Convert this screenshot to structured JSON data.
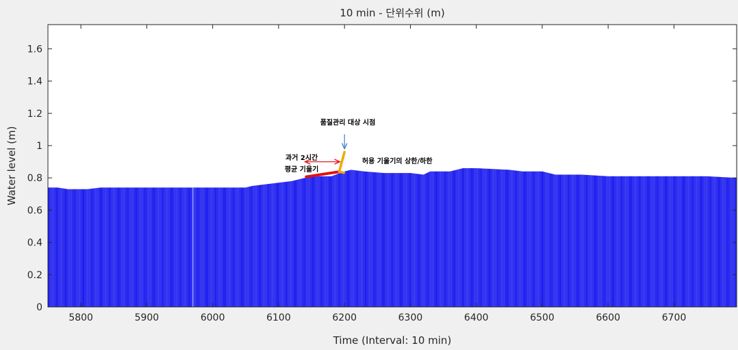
{
  "chart_data": {
    "type": "bar",
    "title": "10 min - 단위수위 (m)",
    "xlabel": "Time (Interval: 10 min)",
    "ylabel": "Water level (m)",
    "xlim": [
      5750,
      6795
    ],
    "ylim": [
      0,
      1.75
    ],
    "xticks": [
      5800,
      5900,
      6000,
      6100,
      6200,
      6300,
      6400,
      6500,
      6600,
      6700
    ],
    "yticks": [
      0,
      0.2,
      0.4,
      0.6,
      0.8,
      1,
      1.2,
      1.4,
      1.6
    ],
    "xtick_labels": [
      "5800",
      "5900",
      "6000",
      "6100",
      "6200",
      "6300",
      "6400",
      "6500",
      "6600",
      "6700"
    ],
    "ytick_labels": [
      "0",
      "0.2",
      "0.4",
      "0.6",
      "0.8",
      "1",
      "1.2",
      "1.4",
      "1.6"
    ],
    "bar_color": "#1a1aee",
    "grid": false,
    "series": [
      {
        "x": [
          5750,
          5765,
          5780,
          5810,
          5830,
          5850,
          5900,
          5950,
          5970,
          6000,
          6050,
          6060,
          6080,
          6100,
          6120,
          6140,
          6160,
          6180,
          6200,
          6210,
          6230,
          6260,
          6300,
          6320,
          6330,
          6360,
          6380,
          6400,
          6450,
          6470,
          6500,
          6520,
          6560,
          6600,
          6640,
          6660,
          6700,
          6750,
          6795
        ],
        "values": [
          0.74,
          0.74,
          0.73,
          0.73,
          0.74,
          0.74,
          0.74,
          0.74,
          0.74,
          0.74,
          0.74,
          0.75,
          0.76,
          0.77,
          0.78,
          0.8,
          0.81,
          0.81,
          0.84,
          0.85,
          0.84,
          0.83,
          0.83,
          0.82,
          0.84,
          0.84,
          0.86,
          0.86,
          0.85,
          0.84,
          0.84,
          0.82,
          0.82,
          0.81,
          0.81,
          0.81,
          0.81,
          0.81,
          0.8
        ]
      }
    ],
    "annotations": [
      {
        "text": "품질관리 대상 시점",
        "x": 6205,
        "y": 1.13
      },
      {
        "text": "과거 2시간",
        "x": 6135,
        "y": 0.91
      },
      {
        "text": "평균 기울기",
        "x": 6135,
        "y": 0.84
      },
      {
        "text": "허용 기울기의 상한/하한",
        "x": 6280,
        "y": 0.89
      }
    ],
    "markers": {
      "target_arrow_color": "#4a86c8",
      "range_arrow_color": "#e02020",
      "avg_slope_color": "#e01010",
      "limit_color": "#f0a800",
      "range_arrow": {
        "x_from": 6140,
        "x_to": 6193,
        "y": 0.9
      },
      "target_arrow": {
        "x": 6200,
        "y_from": 1.07,
        "y_to": 0.98
      },
      "avg_slope_line": {
        "x_from": 6142,
        "y_from": 0.807,
        "x_to": 6192,
        "y_to": 0.838
      },
      "upper_limit": {
        "x_from": 6192,
        "y_from": 0.838,
        "x_to": 6200,
        "y_to": 0.96
      },
      "lower_limit": {
        "x_from": 6192,
        "y_from": 0.838,
        "x_to": 6199,
        "y_to": 0.832
      }
    }
  }
}
